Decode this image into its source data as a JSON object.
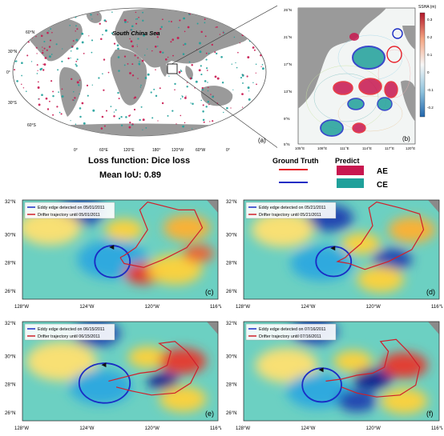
{
  "world_map": {
    "panel_label": "(a)",
    "region_label": "South China Sea",
    "lat_labels": [
      "60°N",
      "30°N",
      "0°",
      "30°S",
      "60°S"
    ],
    "lon_labels": [
      "0°",
      "60°E",
      "120°E",
      "180°",
      "120°W",
      "60°W",
      "0°"
    ]
  },
  "zoom_map": {
    "panel_label": "(b)",
    "colorbar_title": "SSHA (m)",
    "colorbar_ticks": [
      "0.3",
      "0.2",
      "0.1",
      "0",
      "-0.1",
      "-0.2"
    ],
    "lat_labels": [
      "25°N",
      "21°N",
      "17°N",
      "13°N",
      "9°N",
      "5°N"
    ],
    "lon_labels": [
      "105°E",
      "108°E",
      "111°E",
      "114°E",
      "117°E",
      "120°E"
    ]
  },
  "legend": {
    "loss_text": "Loss function: Dice loss",
    "miou_text": "Mean IoU:  0.89",
    "ground_truth_label": "Ground Truth",
    "predict_label": "Predict",
    "ae_label": "AE",
    "ce_label": "CE",
    "colors": {
      "ae": "#c8174f",
      "ce": "#1fa09a",
      "gt_red": "#e8202a",
      "gt_blue": "#1a2cc4"
    }
  },
  "panels": [
    {
      "label": "(c)",
      "eddy_text": "Eddy edge detected on 05/01/2011",
      "drifter_text": "Drifter trajectory until 05/01/2011"
    },
    {
      "label": "(d)",
      "eddy_text": "Eddy edge detected on 05/21/2011",
      "drifter_text": "Drifter trajectory until 05/21/2011"
    },
    {
      "label": "(e)",
      "eddy_text": "Eddy edge detected on 06/15/2011",
      "drifter_text": "Drifter trajectory until 06/15/2011"
    },
    {
      "label": "(f)",
      "eddy_text": "Eddy edge detected on 07/16/2011",
      "drifter_text": "Drifter trajectory until 07/16/2011"
    }
  ],
  "panel_axes": {
    "lat_labels": [
      "32°N",
      "30°N",
      "28°N",
      "26°N"
    ],
    "lon_labels": [
      "128°W",
      "124°W",
      "120°W",
      "116°W"
    ]
  }
}
